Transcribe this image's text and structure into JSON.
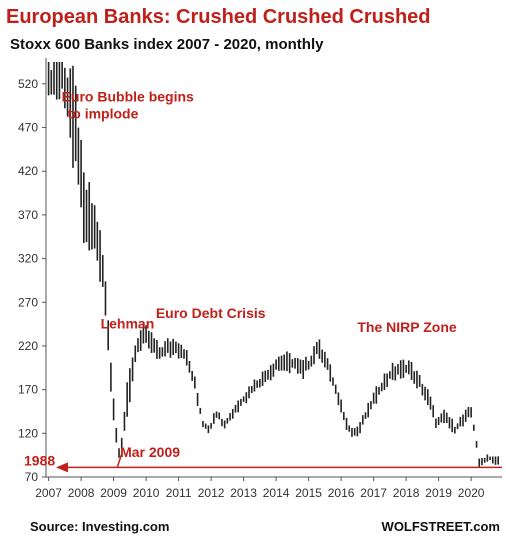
{
  "title": "European Banks: Crushed Crushed Crushed",
  "subtitle": "Stoxx 600 Banks index 2007 - 2020, monthly",
  "source": "Source: Investing.com",
  "brand": "WOLFSTREET.com",
  "colors": {
    "accent": "#c0201a",
    "bars": "#222222",
    "axis": "#555555"
  },
  "chart_data": {
    "type": "bar",
    "title": "European Banks: Crushed Crushed Crushed",
    "subtitle": "Stoxx 600 Banks index 2007 - 2020, monthly",
    "xlabel": "",
    "ylabel": "",
    "ylim": [
      70,
      545
    ],
    "yticks": [
      70,
      120,
      170,
      220,
      270,
      320,
      370,
      420,
      470,
      520
    ],
    "xticks": [
      "2007",
      "2008",
      "2009",
      "2010",
      "2011",
      "2012",
      "2013",
      "2014",
      "2015",
      "2016",
      "2017",
      "2018",
      "2019",
      "2020"
    ],
    "grid": false,
    "reference_line": {
      "label": "1988",
      "value": 81
    },
    "annotations": [
      {
        "text_lines": [
          "Euro Bubble begins",
          "to implode"
        ],
        "year": 2007.4,
        "value": 500
      },
      {
        "text_lines": [
          "Lehman"
        ],
        "year": 2008.6,
        "value": 240
      },
      {
        "text_lines": [
          "Euro Debt Crisis"
        ],
        "year": 2010.3,
        "value": 252
      },
      {
        "text_lines": [
          "The NIRP Zone"
        ],
        "year": 2016.5,
        "value": 236
      },
      {
        "text_lines": [
          "Mar 2009"
        ],
        "year": 2009.2,
        "value": 93
      }
    ],
    "anchors": [
      [
        2007.0,
        520
      ],
      [
        2007.25,
        535
      ],
      [
        2007.5,
        525
      ],
      [
        2007.7,
        490
      ],
      [
        2007.9,
        455
      ],
      [
        2008.05,
        380
      ],
      [
        2008.3,
        360
      ],
      [
        2008.5,
        340
      ],
      [
        2008.7,
        290
      ],
      [
        2008.85,
        225
      ],
      [
        2009.0,
        150
      ],
      [
        2009.1,
        110
      ],
      [
        2009.2,
        94
      ],
      [
        2009.4,
        155
      ],
      [
        2009.7,
        220
      ],
      [
        2009.9,
        232
      ],
      [
        2010.1,
        228
      ],
      [
        2010.4,
        210
      ],
      [
        2010.7,
        218
      ],
      [
        2010.95,
        220
      ],
      [
        2011.2,
        210
      ],
      [
        2011.5,
        175
      ],
      [
        2011.75,
        130
      ],
      [
        2011.95,
        125
      ],
      [
        2012.2,
        145
      ],
      [
        2012.4,
        128
      ],
      [
        2012.7,
        145
      ],
      [
        2012.95,
        157
      ],
      [
        2013.3,
        172
      ],
      [
        2013.6,
        182
      ],
      [
        2013.9,
        195
      ],
      [
        2014.2,
        203
      ],
      [
        2014.5,
        200
      ],
      [
        2014.8,
        193
      ],
      [
        2015.0,
        198
      ],
      [
        2015.25,
        218
      ],
      [
        2015.5,
        208
      ],
      [
        2015.75,
        178
      ],
      [
        2015.95,
        155
      ],
      [
        2016.2,
        128
      ],
      [
        2016.45,
        120
      ],
      [
        2016.7,
        135
      ],
      [
        2016.95,
        155
      ],
      [
        2017.3,
        178
      ],
      [
        2017.6,
        190
      ],
      [
        2017.9,
        194
      ],
      [
        2018.1,
        195
      ],
      [
        2018.4,
        178
      ],
      [
        2018.7,
        160
      ],
      [
        2018.95,
        130
      ],
      [
        2019.2,
        140
      ],
      [
        2019.5,
        125
      ],
      [
        2019.8,
        138
      ],
      [
        2020.0,
        144
      ],
      [
        2020.15,
        112
      ],
      [
        2020.25,
        86
      ],
      [
        2020.5,
        92
      ],
      [
        2020.75,
        89
      ]
    ]
  }
}
